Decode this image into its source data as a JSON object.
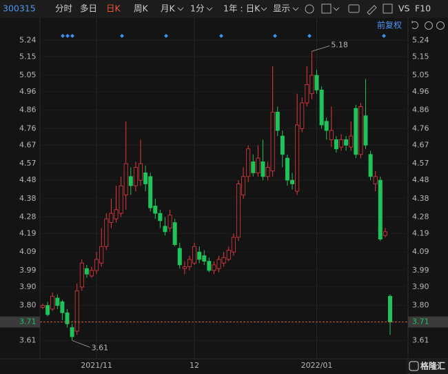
{
  "toolbar": {
    "code": "300315",
    "tabs": [
      "分时",
      "多日",
      "日K",
      "周K",
      "月K",
      "1分",
      "1年 : 日K",
      "显示"
    ],
    "compare": "VS",
    "f10": "F10"
  },
  "adjust": "前复权",
  "watermark": "格隆汇",
  "chart_data": {
    "type": "candlestick",
    "up_color": "#e8393e",
    "down_color": "#1fc35a",
    "categories": [
      null,
      null,
      null,
      null,
      null,
      null,
      null,
      null,
      null,
      null,
      null,
      "2021/11",
      null,
      null,
      null,
      null,
      null,
      null,
      null,
      null,
      null,
      null,
      null,
      null,
      null,
      null,
      null,
      null,
      null,
      null,
      null,
      "12",
      null,
      null,
      null,
      null,
      null,
      null,
      null,
      null,
      null,
      null,
      null,
      null,
      null,
      null,
      null,
      null,
      null,
      null,
      null,
      null,
      null,
      null,
      null,
      null,
      "2022/01",
      null,
      null,
      null,
      null,
      null,
      null,
      null,
      null,
      null,
      null,
      null,
      null,
      null,
      null,
      null
    ],
    "open": [
      3.79,
      3.8,
      3.78,
      3.84,
      3.82,
      3.76,
      3.68,
      3.66,
      3.9,
      4.0,
      3.96,
      3.99,
      4.03,
      4.12,
      4.25,
      4.27,
      4.3,
      4.4,
      4.5,
      4.45,
      4.48,
      4.52,
      4.5,
      4.34,
      4.3,
      4.23,
      4.22,
      4.25,
      4.11,
      4.0,
      4.01,
      4.03,
      4.09,
      4.07,
      4.04,
      3.99,
      4.0,
      4.03,
      4.05,
      4.09,
      4.17,
      4.4,
      4.5,
      4.58,
      4.52,
      4.58,
      4.5,
      4.53,
      4.85,
      4.72,
      4.6,
      4.48,
      4.42,
      4.76,
      4.9,
      4.95,
      5.05,
      4.97,
      4.8,
      4.7,
      4.7,
      4.66,
      4.7,
      4.66,
      4.87,
      4.62,
      4.83,
      4.62,
      4.46,
      4.48,
      4.18,
      3.85
    ],
    "close": [
      3.8,
      3.75,
      3.85,
      3.8,
      3.76,
      3.7,
      3.63,
      3.88,
      4.03,
      3.97,
      3.99,
      4.05,
      4.12,
      4.27,
      4.3,
      4.32,
      4.45,
      4.57,
      4.45,
      4.55,
      4.57,
      4.46,
      4.33,
      4.3,
      4.26,
      4.2,
      4.29,
      4.13,
      4.02,
      4.01,
      4.05,
      4.12,
      4.05,
      4.04,
      3.99,
      4.02,
      4.05,
      4.06,
      4.1,
      4.17,
      4.46,
      4.5,
      4.65,
      4.52,
      4.6,
      4.5,
      4.55,
      4.85,
      4.75,
      4.62,
      4.48,
      4.46,
      4.78,
      4.9,
      5.0,
      5.05,
      4.97,
      4.78,
      4.75,
      4.75,
      4.65,
      4.7,
      4.67,
      4.72,
      4.62,
      4.88,
      4.67,
      4.5,
      4.5,
      4.16,
      4.2,
      3.71
    ],
    "high": [
      3.81,
      3.82,
      3.87,
      3.86,
      3.83,
      3.78,
      3.7,
      3.92,
      4.05,
      4.02,
      4.01,
      4.09,
      4.22,
      4.3,
      4.38,
      4.45,
      4.5,
      4.8,
      4.55,
      4.58,
      4.7,
      4.56,
      4.52,
      4.38,
      4.32,
      4.28,
      4.32,
      4.27,
      4.14,
      4.04,
      4.07,
      4.14,
      4.12,
      4.1,
      4.06,
      4.04,
      4.07,
      4.09,
      4.12,
      4.19,
      4.48,
      4.55,
      4.67,
      4.62,
      4.67,
      4.7,
      4.58,
      5.1,
      4.88,
      4.75,
      4.62,
      4.52,
      4.95,
      4.93,
      5.1,
      5.18,
      5.08,
      4.99,
      4.82,
      4.88,
      4.72,
      4.73,
      4.72,
      4.8,
      4.89,
      4.9,
      5.03,
      4.64,
      4.53,
      4.5,
      4.22,
      3.86
    ],
    "low": [
      3.78,
      3.74,
      3.77,
      3.78,
      3.72,
      3.68,
      3.61,
      3.64,
      3.88,
      3.95,
      3.95,
      3.97,
      4.01,
      4.1,
      4.22,
      4.25,
      4.28,
      4.32,
      4.4,
      4.42,
      4.45,
      4.42,
      4.31,
      4.27,
      4.22,
      4.18,
      4.2,
      4.12,
      4.0,
      3.97,
      3.99,
      4.02,
      4.03,
      4.02,
      3.98,
      3.97,
      3.98,
      4.01,
      4.04,
      4.07,
      4.15,
      4.38,
      4.47,
      4.5,
      4.5,
      4.48,
      4.48,
      4.5,
      4.72,
      4.55,
      4.45,
      4.43,
      4.4,
      4.74,
      4.88,
      4.92,
      4.95,
      4.76,
      4.7,
      4.66,
      4.63,
      4.64,
      4.64,
      4.64,
      4.6,
      4.6,
      4.65,
      4.48,
      4.42,
      4.15,
      4.17,
      3.64
    ],
    "ylim": [
      3.51,
      5.29
    ],
    "yticks": [
      5.24,
      5.15,
      5.05,
      4.96,
      4.86,
      4.76,
      4.67,
      4.57,
      4.48,
      4.38,
      4.28,
      4.19,
      4.09,
      3.99,
      {
        "value": 3.9,
        "label": "3.90"
      },
      {
        "value": 3.8,
        "label": "3.80"
      },
      3.61
    ]
  }
}
